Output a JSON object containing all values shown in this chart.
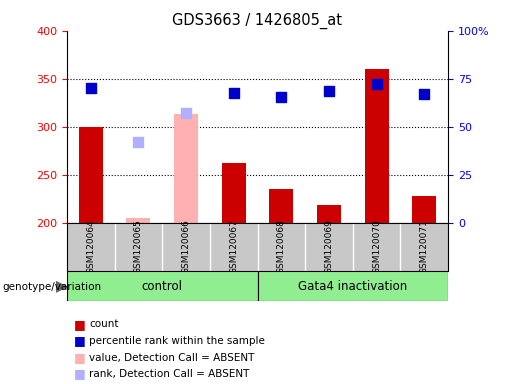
{
  "title": "GDS3663 / 1426805_at",
  "samples": [
    "GSM120064",
    "GSM120065",
    "GSM120066",
    "GSM120067",
    "GSM120068",
    "GSM120069",
    "GSM120070",
    "GSM120071"
  ],
  "count_values": [
    300,
    null,
    null,
    262,
    235,
    218,
    360,
    228
  ],
  "count_absent_values": [
    null,
    205,
    313,
    null,
    null,
    null,
    null,
    null
  ],
  "percentile_values": [
    340,
    null,
    null,
    335,
    331,
    337,
    345,
    334
  ],
  "percentile_absent_values": [
    null,
    284,
    314,
    null,
    null,
    null,
    null,
    null
  ],
  "ylim_left": [
    200,
    400
  ],
  "ylim_right": [
    0,
    100
  ],
  "yticks_left": [
    200,
    250,
    300,
    350,
    400
  ],
  "yticks_right": [
    0,
    25,
    50,
    75,
    100
  ],
  "ytick_labels_right": [
    "0",
    "25",
    "50",
    "75",
    "100%"
  ],
  "bar_color_present": "#cc0000",
  "bar_color_absent": "#ffb0b0",
  "dot_color_present": "#0000cc",
  "dot_color_absent": "#b0b0ff",
  "control_group_color": "#90ee90",
  "gata4_group_color": "#90ee90",
  "group_label_control": "control",
  "group_label_gata4": "Gata4 inactivation",
  "genotype_label": "genotype/variation",
  "legend_items": [
    "count",
    "percentile rank within the sample",
    "value, Detection Call = ABSENT",
    "rank, Detection Call = ABSENT"
  ],
  "legend_colors": [
    "#cc0000",
    "#0000cc",
    "#ffb0b0",
    "#b0b0ff"
  ],
  "bar_width": 0.5,
  "dot_size": 55,
  "bg_gray": "#c8c8c8",
  "grid_levels": [
    250,
    300,
    350
  ]
}
